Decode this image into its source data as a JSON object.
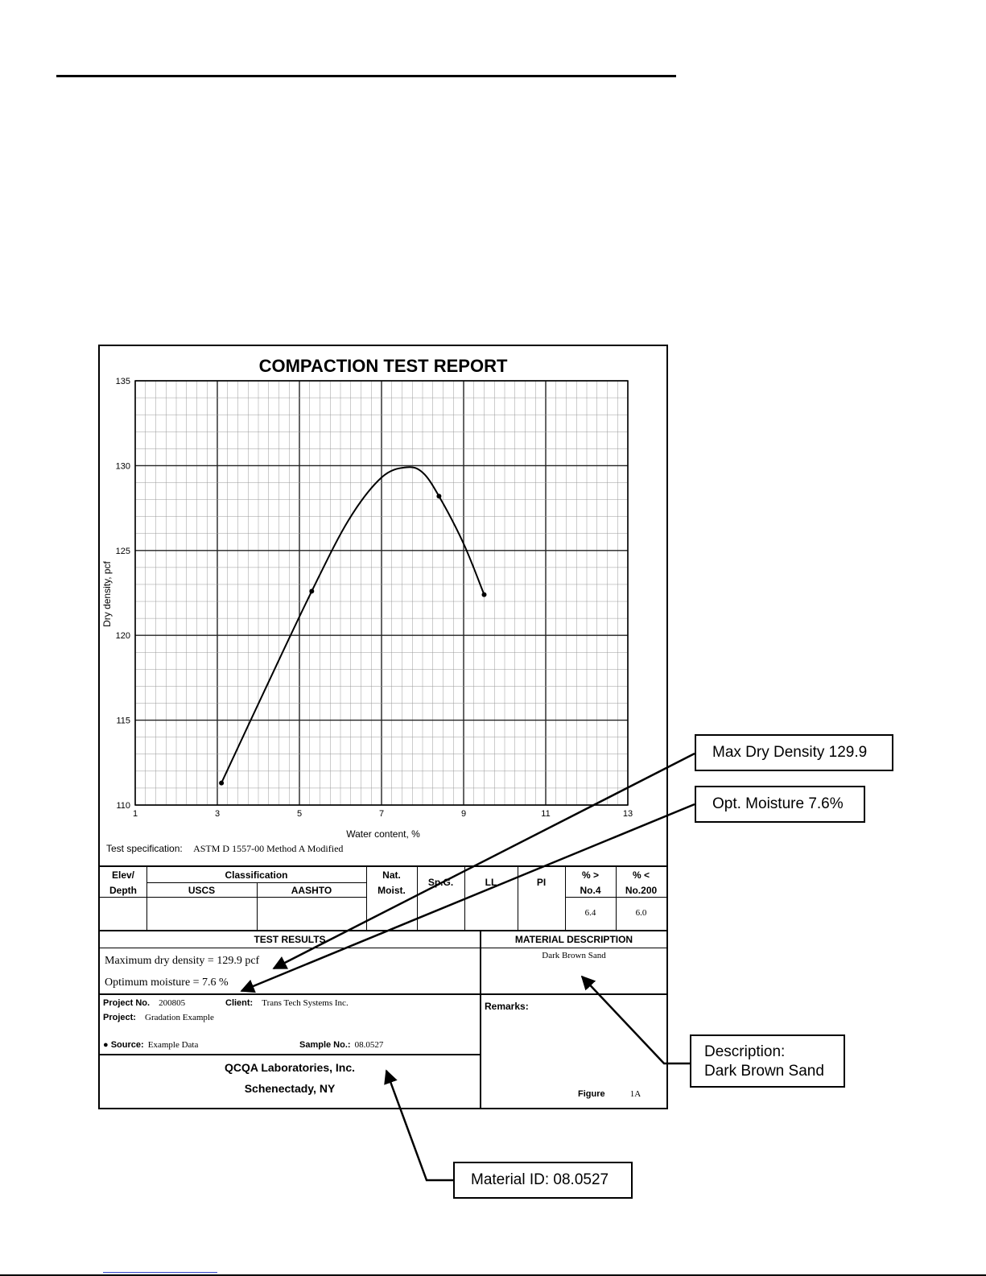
{
  "report": {
    "title": "COMPACTION TEST REPORT",
    "test_spec_label": "Test specification:",
    "test_spec_value": "ASTM D 1557-00 Method A Modified"
  },
  "table": {
    "headers": {
      "elev": "Elev/",
      "depth": "Depth",
      "classification": "Classification",
      "uscs": "USCS",
      "aashto": "AASHTO",
      "nat": "Nat.",
      "moist": "Moist.",
      "spg": "Sp.G.",
      "ll": "LL",
      "pi": "PI",
      "pct_gt": "% >",
      "no4": "No.4",
      "pct_lt": "% <",
      "no200": "No.200"
    },
    "values": {
      "no4": "6.4",
      "no200": "6.0"
    }
  },
  "results": {
    "header": "TEST RESULTS",
    "max_density": "Maximum dry density = 129.9 pcf",
    "opt_moisture": "Optimum moisture = 7.6 %"
  },
  "material": {
    "header": "MATERIAL DESCRIPTION",
    "description": "Dark Brown Sand",
    "remarks_label": "Remarks:"
  },
  "project": {
    "project_no_label": "Project No.",
    "project_no": "200805",
    "client_label": "Client:",
    "client": "Trans Tech Systems Inc.",
    "project_label": "Project:",
    "project": "Gradation Example",
    "source_label": "Source:",
    "source": "Example Data",
    "sample_label": "Sample No.:",
    "sample": "08.0527"
  },
  "lab": {
    "name": "QCQA Laboratories, Inc.",
    "city": "Schenectady, NY",
    "figure_label": "Figure",
    "figure": "1A"
  },
  "callouts": {
    "max_dry_density": "Max Dry Density 129.9",
    "opt_moisture": "Opt. Moisture 7.6%",
    "description_line1": "Description:",
    "description_line2": "Dark Brown Sand",
    "material_id": "Material ID: 08.0527"
  },
  "chart_data": {
    "type": "line",
    "xlabel": "Water content, %",
    "ylabel": "Dry density, pcf",
    "xlim": [
      1,
      13
    ],
    "ylim": [
      110,
      135
    ],
    "x_ticks": [
      "1",
      "3",
      "5",
      "7",
      "9",
      "11",
      "13"
    ],
    "y_ticks": [
      "135",
      "130",
      "125",
      "120",
      "115",
      "110"
    ],
    "points": [
      {
        "x": 3.1,
        "y": 111.3
      },
      {
        "x": 5.3,
        "y": 122.6
      },
      {
        "x": 8.4,
        "y": 128.2
      },
      {
        "x": 9.5,
        "y": 122.4
      }
    ],
    "curve": [
      {
        "x": 3.1,
        "y": 111.3
      },
      {
        "x": 4.2,
        "y": 117.0
      },
      {
        "x": 5.3,
        "y": 122.6
      },
      {
        "x": 6.2,
        "y": 126.8
      },
      {
        "x": 7.0,
        "y": 129.3
      },
      {
        "x": 7.6,
        "y": 129.9
      },
      {
        "x": 8.0,
        "y": 129.6
      },
      {
        "x": 8.4,
        "y": 128.2
      },
      {
        "x": 9.0,
        "y": 125.4
      },
      {
        "x": 9.5,
        "y": 122.4
      }
    ],
    "grid": true
  }
}
